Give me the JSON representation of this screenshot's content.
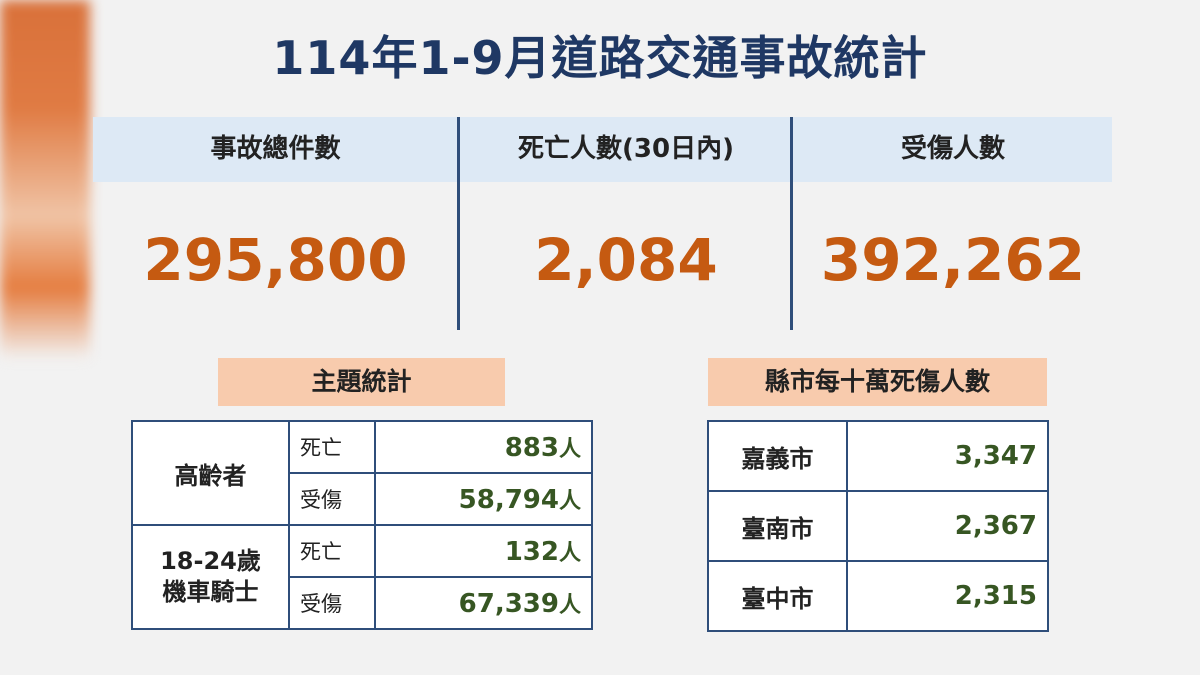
{
  "header": {
    "title": "114年1-9月道路交通事故統計"
  },
  "summary": [
    {
      "label": "事故總件數",
      "value": "295,800"
    },
    {
      "label": "死亡人數(30日內)",
      "value": "2,084"
    },
    {
      "label": "受傷人數",
      "value": "392,262"
    }
  ],
  "topic": {
    "title": "主題統計",
    "groups": [
      {
        "label": [
          "高齡者"
        ],
        "rows": [
          {
            "label": "死亡",
            "value": "883",
            "unit": "人"
          },
          {
            "label": "受傷",
            "value": "58,794",
            "unit": "人"
          }
        ]
      },
      {
        "label": [
          "18-24歲",
          "機車騎士"
        ],
        "rows": [
          {
            "label": "死亡",
            "value": "132",
            "unit": "人"
          },
          {
            "label": "受傷",
            "value": "67,339",
            "unit": "人"
          }
        ]
      }
    ]
  },
  "county": {
    "title": "縣市每十萬死傷人數",
    "rows": [
      {
        "name": "嘉義市",
        "value": "3,347"
      },
      {
        "name": "臺南市",
        "value": "2,367"
      },
      {
        "name": "臺中市",
        "value": "2,315"
      }
    ]
  }
}
